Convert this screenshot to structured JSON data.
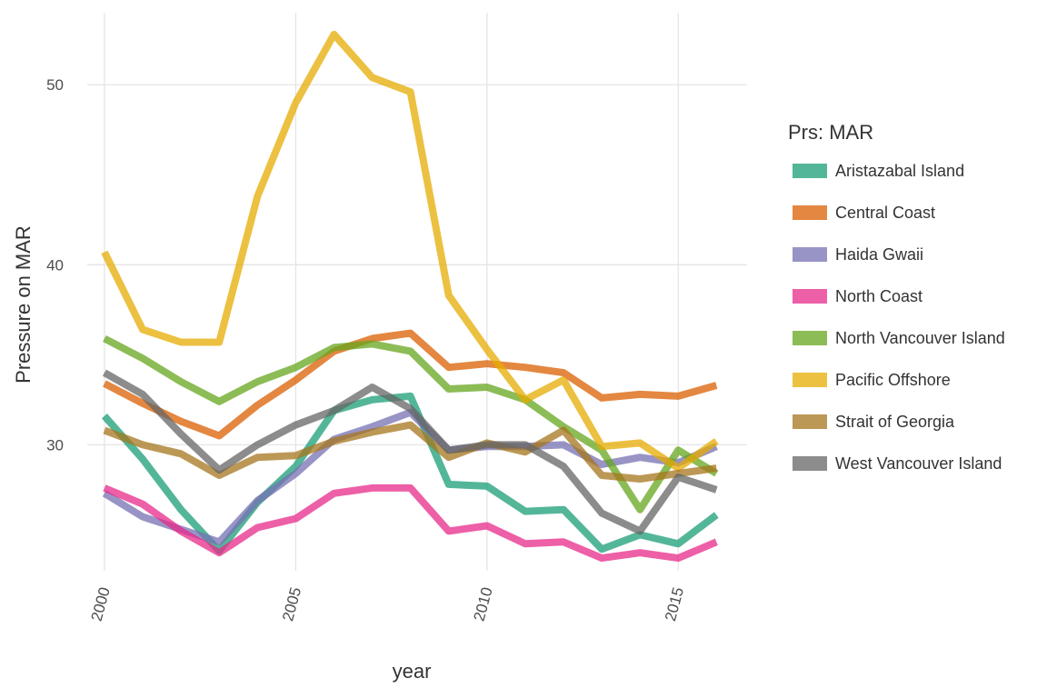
{
  "chart_data": {
    "type": "line",
    "xlabel": "year",
    "ylabel": "Pressure on MAR",
    "xlim": [
      2000,
      2016
    ],
    "ylim": [
      23,
      54
    ],
    "xticks": [
      2000,
      2005,
      2010,
      2015
    ],
    "yticks": [
      30,
      40,
      50
    ],
    "grid": true,
    "legend": {
      "title": "Prs: MAR",
      "position": "right"
    },
    "x": [
      2000,
      2001,
      2002,
      2003,
      2004,
      2005,
      2006,
      2007,
      2008,
      2009,
      2010,
      2011,
      2012,
      2013,
      2014,
      2015,
      2016
    ],
    "series": [
      {
        "name": "Aristazabal Island",
        "color": "#1b9e77",
        "values": [
          31.6,
          29.2,
          26.4,
          24.1,
          26.8,
          28.8,
          31.9,
          32.5,
          32.7,
          27.8,
          27.7,
          26.3,
          26.4,
          24.2,
          25.0,
          24.5,
          26.1
        ]
      },
      {
        "name": "Central Coast",
        "color": "#d95f02",
        "values": [
          33.4,
          32.3,
          31.3,
          30.5,
          32.2,
          33.6,
          35.2,
          35.9,
          36.2,
          34.3,
          34.5,
          34.3,
          34.0,
          32.6,
          32.8,
          32.7,
          33.3
        ]
      },
      {
        "name": "Haida Gwaii",
        "color": "#7570b3",
        "values": [
          27.3,
          26.0,
          25.3,
          24.6,
          26.9,
          28.4,
          30.3,
          31.0,
          31.8,
          29.7,
          29.9,
          29.9,
          30.0,
          28.9,
          29.3,
          29.0,
          29.9
        ]
      },
      {
        "name": "North Coast",
        "color": "#e7298a",
        "values": [
          27.6,
          26.7,
          25.2,
          24.0,
          25.4,
          25.9,
          27.3,
          27.6,
          27.6,
          25.2,
          25.5,
          24.5,
          24.6,
          23.7,
          24.0,
          23.7,
          24.6
        ]
      },
      {
        "name": "North Vancouver Island",
        "color": "#66a61e",
        "values": [
          35.9,
          34.8,
          33.5,
          32.4,
          33.5,
          34.3,
          35.4,
          35.6,
          35.2,
          33.1,
          33.2,
          32.5,
          31.0,
          29.7,
          26.4,
          29.7,
          28.4
        ]
      },
      {
        "name": "Pacific Offshore",
        "color": "#e6ab02",
        "values": [
          40.7,
          36.4,
          35.7,
          35.7,
          43.8,
          49.0,
          52.8,
          50.4,
          49.6,
          38.3,
          35.3,
          32.5,
          33.6,
          29.9,
          30.1,
          28.7,
          30.2
        ]
      },
      {
        "name": "Strait of Georgia",
        "color": "#a6761d",
        "values": [
          30.8,
          30.0,
          29.5,
          28.3,
          29.3,
          29.4,
          30.2,
          30.7,
          31.1,
          29.3,
          30.1,
          29.6,
          30.8,
          28.3,
          28.1,
          28.4,
          28.7
        ]
      },
      {
        "name": "West Vancouver Island",
        "color": "#666666",
        "values": [
          34.0,
          32.8,
          30.6,
          28.6,
          30.0,
          31.1,
          31.9,
          33.2,
          32.0,
          29.7,
          30.0,
          30.0,
          28.8,
          26.2,
          25.2,
          28.2,
          27.5
        ]
      }
    ]
  }
}
